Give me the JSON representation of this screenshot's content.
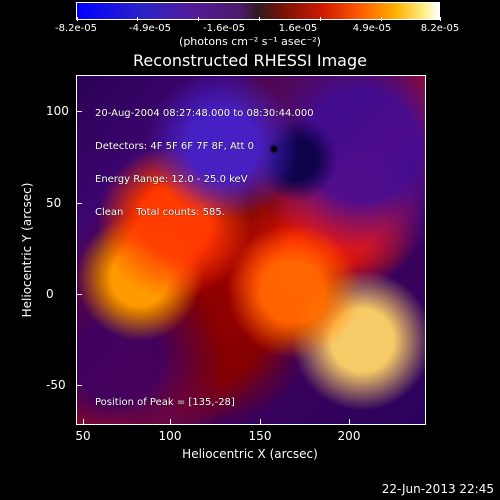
{
  "colorbar": {
    "labels": [
      "-8.2e-05",
      "-4.9e-05",
      "-1.6e-05",
      "1.6e-05",
      "4.9e-05",
      "8.2e-05"
    ]
  },
  "units_text": "(photons cm⁻² s⁻¹ asec⁻²)",
  "title": "Reconstructed RHESSI Image",
  "plot_text": {
    "line1": "20-Aug-2004 08:27:48.000 to 08:30:44.000",
    "line2": "Detectors: 4F 5F 6F 7F 8F, Att 0",
    "line3": "Energy Range: 12.0 - 25.0 keV",
    "line4": "Clean    Total counts: 585.",
    "peak": "Position of Peak = [135,-28]"
  },
  "axes": {
    "xlabel": "Heliocentric X (arcsec)",
    "ylabel": "Heliocentric Y (arcsec)",
    "xticks": [
      "50",
      "100",
      "150",
      "200"
    ],
    "yticks": [
      "100",
      "50",
      "0",
      "-50"
    ]
  },
  "timestamp": "22-Jun-2013 22:45"
}
